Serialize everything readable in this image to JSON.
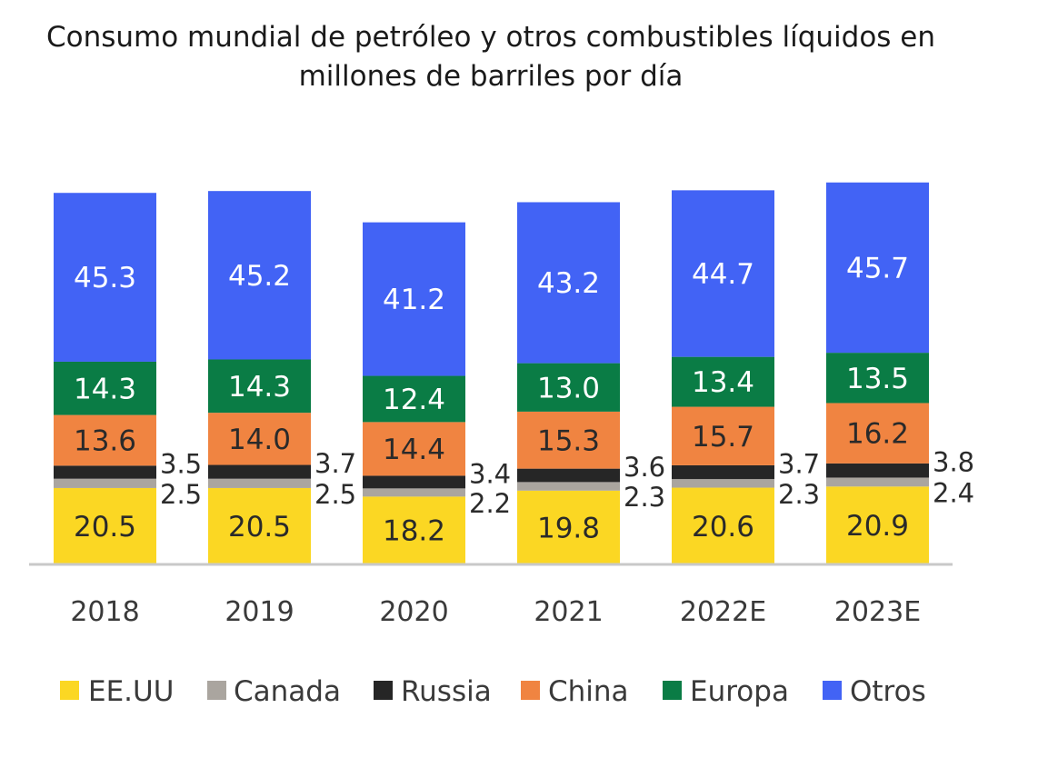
{
  "title_line1": "Consumo mundial de petróleo y otros combustibles líquidos en",
  "title_line2": "millones de barriles por día",
  "chart_data": {
    "type": "bar",
    "stacked": true,
    "title": "Consumo mundial de petróleo y otros combustibles líquidos en millones de barriles por día",
    "categories": [
      "2018",
      "2019",
      "2020",
      "2021",
      "2022E",
      "2023E"
    ],
    "series": [
      {
        "name": "EE.UU",
        "color": "#FBD723",
        "values": [
          20.5,
          20.5,
          18.2,
          19.8,
          20.6,
          20.9
        ],
        "labels": [
          "20.5",
          "20.5",
          "18.2",
          "19.8",
          "20.6",
          "20.9"
        ]
      },
      {
        "name": "Canada",
        "color": "#AAA59F",
        "values": [
          2.5,
          2.5,
          2.2,
          2.3,
          2.3,
          2.4
        ],
        "labels": [
          "2.5",
          "2.5",
          "2.2",
          "2.3",
          "2.3",
          "2.4"
        ]
      },
      {
        "name": "Russia",
        "color": "#262626",
        "values": [
          3.5,
          3.7,
          3.4,
          3.6,
          3.7,
          3.8
        ],
        "labels": [
          "3.5",
          "3.7",
          "3.4",
          "3.6",
          "3.7",
          "3.8"
        ]
      },
      {
        "name": "China",
        "color": "#F08441",
        "values": [
          13.6,
          14.0,
          14.4,
          15.3,
          15.7,
          16.2
        ],
        "labels": [
          "13.6",
          "14.0",
          "14.4",
          "15.3",
          "15.7",
          "16.2"
        ]
      },
      {
        "name": "Europa",
        "color": "#0A7C45",
        "values": [
          14.3,
          14.3,
          12.4,
          13.0,
          13.4,
          13.5
        ],
        "labels": [
          "14.3",
          "14.3",
          "12.4",
          "13.0",
          "13.4",
          "13.5"
        ]
      },
      {
        "name": "Otros",
        "color": "#4263F5",
        "values": [
          45.3,
          45.2,
          41.2,
          43.2,
          44.7,
          45.7
        ],
        "labels": [
          "45.3",
          "45.2",
          "41.2",
          "43.2",
          "44.7",
          "45.7"
        ]
      }
    ],
    "ylim": [
      0,
      100
    ],
    "grid": false,
    "legend": "bottom"
  }
}
